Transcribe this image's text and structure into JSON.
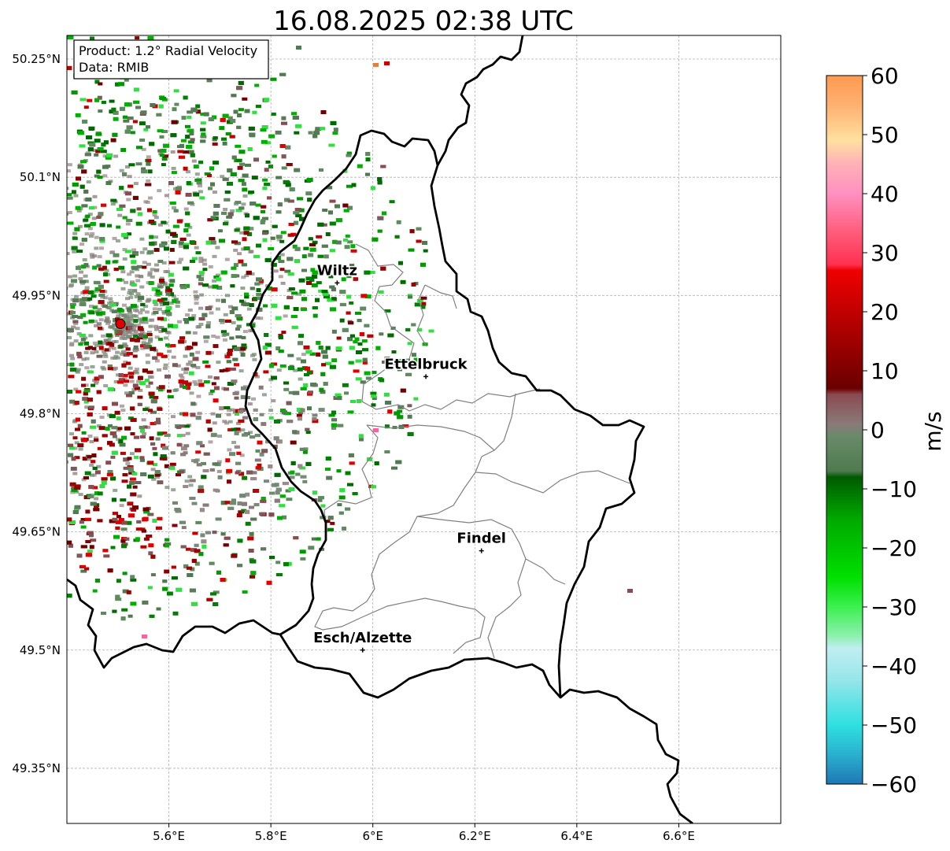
{
  "title": "16.08.2025 02:38 UTC",
  "info_box": {
    "product": "Product: 1.2° Radial Velocity",
    "data": "Data: RMIB"
  },
  "map": {
    "lon_range": [
      5.4,
      6.8
    ],
    "lat_range": [
      49.28,
      50.28
    ],
    "lon_ticks": [
      5.6,
      5.8,
      6.0,
      6.2,
      6.4,
      6.6
    ],
    "lon_tick_labels": [
      "5.6°E",
      "5.8°E",
      "6°E",
      "6.2°E",
      "6.4°E",
      "6.6°E"
    ],
    "lat_ticks": [
      49.35,
      49.5,
      49.65,
      49.8,
      49.95,
      50.1,
      50.25
    ],
    "lat_tick_labels": [
      "49.35°N",
      "49.5°N",
      "49.65°N",
      "49.8°N",
      "49.95°N",
      "50.1°N",
      "50.25°N"
    ],
    "grid": true,
    "radar_site": {
      "lon": 5.505,
      "lat": 49.914
    },
    "cities": [
      {
        "name": "Wiltz",
        "lon": 5.93,
        "lat": 49.966
      },
      {
        "name": "Ettelbruck",
        "lon": 6.104,
        "lat": 49.847
      },
      {
        "name": "Findel",
        "lon": 6.213,
        "lat": 49.626
      },
      {
        "name": "Esch/Alzette",
        "lon": 5.98,
        "lat": 49.5
      }
    ]
  },
  "colorbar": {
    "label": "m/s",
    "min": -60,
    "max": 60,
    "ticks": [
      60,
      50,
      40,
      30,
      20,
      10,
      0,
      -10,
      -20,
      -30,
      -40,
      -50,
      -60
    ],
    "tick_labels": [
      "60",
      "50",
      "40",
      "30",
      "20",
      "10",
      "0",
      "−10",
      "−20",
      "−30",
      "−40",
      "−50",
      "−60"
    ],
    "stops": [
      {
        "v": -60,
        "color": "#1f77b4"
      },
      {
        "v": -55,
        "color": "#2ab0d0"
      },
      {
        "v": -50,
        "color": "#2ee0e0"
      },
      {
        "v": -42,
        "color": "#9ae6ea"
      },
      {
        "v": -37,
        "color": "#c0eef2"
      },
      {
        "v": -35,
        "color": "#8ff0b0"
      },
      {
        "v": -30,
        "color": "#3cf050"
      },
      {
        "v": -25,
        "color": "#00e000"
      },
      {
        "v": -15,
        "color": "#00a800"
      },
      {
        "v": -8,
        "color": "#005a00"
      },
      {
        "v": -7,
        "color": "#4f7a4f"
      },
      {
        "v": -1,
        "color": "#6a8a6a"
      },
      {
        "v": 1,
        "color": "#8a7a7a"
      },
      {
        "v": 6,
        "color": "#8a4a50"
      },
      {
        "v": 7,
        "color": "#6a0000"
      },
      {
        "v": 15,
        "color": "#a00000"
      },
      {
        "v": 27,
        "color": "#f00000"
      },
      {
        "v": 28,
        "color": "#ff3050"
      },
      {
        "v": 34,
        "color": "#ff6080"
      },
      {
        "v": 40,
        "color": "#ff90c0"
      },
      {
        "v": 45,
        "color": "#ffb0b8"
      },
      {
        "v": 49,
        "color": "#ffe0a0"
      },
      {
        "v": 55,
        "color": "#ffb070"
      },
      {
        "v": 60,
        "color": "#ff9a50"
      }
    ]
  }
}
